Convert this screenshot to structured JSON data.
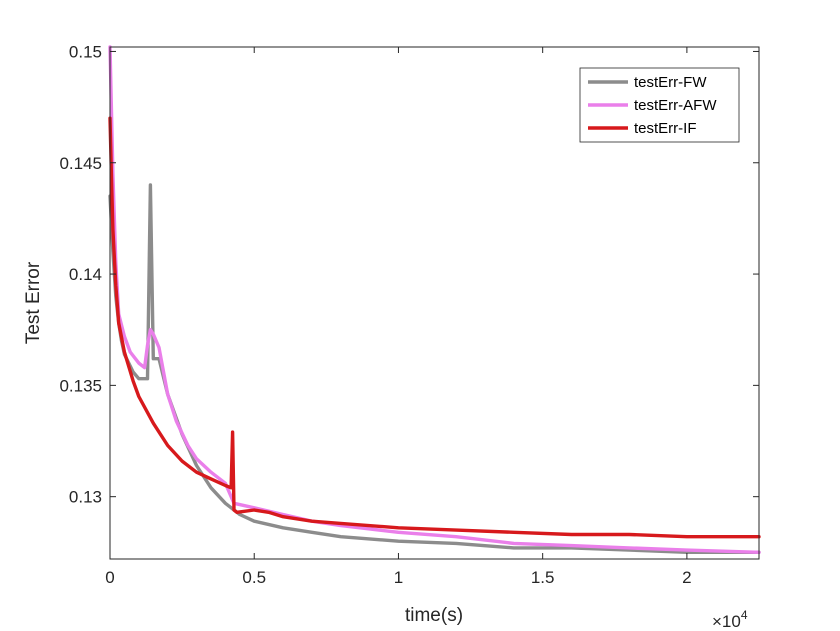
{
  "chart_data": {
    "type": "line",
    "title": "",
    "xlabel": "time(s)",
    "ylabel": "Test Error",
    "x_exponent_label": "×10",
    "x_exponent_power": "4",
    "xlim": [
      0,
      2.25
    ],
    "ylim": [
      0.1272,
      0.1502
    ],
    "grid": false,
    "legend_position": "top-right",
    "xticks": [
      0,
      0.5,
      1,
      1.5,
      2
    ],
    "xtick_labels": [
      "0",
      "0.5",
      "1",
      "1.5",
      "2"
    ],
    "yticks": [
      0.13,
      0.135,
      0.14,
      0.145,
      0.15
    ],
    "ytick_labels": [
      "0.13",
      "0.135",
      "0.14",
      "0.145",
      "0.15"
    ],
    "series": [
      {
        "name": "testErr-FW",
        "color": "#8c8c8c",
        "x": [
          0,
          0.01,
          0.02,
          0.03,
          0.04,
          0.05,
          0.08,
          0.1,
          0.13,
          0.14,
          0.15,
          0.17,
          0.2,
          0.25,
          0.3,
          0.35,
          0.4,
          0.45,
          0.5,
          0.6,
          0.7,
          0.8,
          1.0,
          1.2,
          1.4,
          1.6,
          1.8,
          2.0,
          2.25
        ],
        "y": [
          0.1435,
          0.141,
          0.139,
          0.1378,
          0.137,
          0.1364,
          0.1356,
          0.1353,
          0.1353,
          0.144,
          0.1362,
          0.1362,
          0.1346,
          0.1328,
          0.1314,
          0.1304,
          0.1297,
          0.1292,
          0.1289,
          0.1286,
          0.1284,
          0.1282,
          0.128,
          0.1279,
          0.1277,
          0.1277,
          0.1276,
          0.1275,
          0.1275
        ]
      },
      {
        "name": "testErr-AFW",
        "color": "#ea7fea",
        "x": [
          0,
          0.01,
          0.02,
          0.03,
          0.05,
          0.07,
          0.1,
          0.12,
          0.13,
          0.14,
          0.15,
          0.17,
          0.2,
          0.23,
          0.27,
          0.3,
          0.35,
          0.4,
          0.43,
          0.5,
          0.6,
          0.7,
          0.8,
          1.0,
          1.2,
          1.4,
          1.6,
          1.8,
          2.0,
          2.25
        ],
        "y": [
          0.1502,
          0.1445,
          0.1405,
          0.1382,
          0.1372,
          0.1365,
          0.136,
          0.1358,
          0.1368,
          0.1375,
          0.1373,
          0.1367,
          0.1346,
          0.1334,
          0.1323,
          0.1317,
          0.1311,
          0.1306,
          0.1297,
          0.1295,
          0.1292,
          0.1289,
          0.1287,
          0.1284,
          0.1282,
          0.1279,
          0.1278,
          0.1277,
          0.1276,
          0.1275
        ]
      },
      {
        "name": "testErr-IF",
        "color": "#d7191c",
        "x": [
          0,
          0.005,
          0.01,
          0.02,
          0.03,
          0.05,
          0.08,
          0.1,
          0.15,
          0.2,
          0.25,
          0.3,
          0.35,
          0.4,
          0.42,
          0.425,
          0.43,
          0.44,
          0.5,
          0.55,
          0.6,
          0.7,
          0.8,
          1.0,
          1.2,
          1.4,
          1.6,
          1.8,
          2.0,
          2.25
        ],
        "y": [
          0.147,
          0.1445,
          0.142,
          0.1395,
          0.1378,
          0.1365,
          0.1352,
          0.1345,
          0.1333,
          0.1323,
          0.1316,
          0.1311,
          0.1308,
          0.1305,
          0.1304,
          0.1329,
          0.1294,
          0.1293,
          0.1294,
          0.1293,
          0.1291,
          0.1289,
          0.1288,
          0.1286,
          0.1285,
          0.1284,
          0.1283,
          0.1283,
          0.1282,
          0.1282
        ]
      }
    ]
  }
}
